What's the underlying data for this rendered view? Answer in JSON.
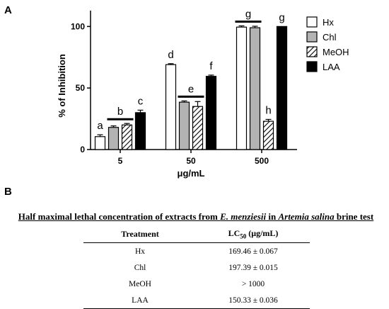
{
  "panels": {
    "a_label": "A",
    "b_label": "B"
  },
  "chart_data": {
    "type": "bar",
    "categories": [
      "5",
      "50",
      "500"
    ],
    "xlabel": "μg/mL",
    "ylabel": "% of Inhibition",
    "ylim": [
      0,
      110
    ],
    "yticks": [
      0,
      50,
      100
    ],
    "grid": false,
    "legend_position": "right",
    "series": [
      {
        "name": "Hx",
        "values": [
          10.5,
          69,
          99.5
        ],
        "errors": [
          1.5,
          0.8,
          1.0
        ],
        "fill": "white"
      },
      {
        "name": "Chl",
        "values": [
          18,
          38.5,
          99
        ],
        "errors": [
          1.2,
          1.0,
          1.2
        ],
        "fill": "gray"
      },
      {
        "name": "MeOH",
        "values": [
          20,
          35,
          23
        ],
        "errors": [
          1.2,
          4.0,
          1.5
        ],
        "fill": "hatch"
      },
      {
        "name": "LAA",
        "values": [
          30,
          59.5,
          100
        ],
        "errors": [
          2.0,
          1.0,
          0.0
        ],
        "fill": "black"
      }
    ],
    "significance_letters": [
      {
        "text": "a",
        "group": 0,
        "bars": [
          0
        ]
      },
      {
        "text": "b",
        "group": 0,
        "bars": [
          1,
          2
        ]
      },
      {
        "text": "c",
        "group": 0,
        "bars": [
          3
        ]
      },
      {
        "text": "d",
        "group": 1,
        "bars": [
          0
        ]
      },
      {
        "text": "e",
        "group": 1,
        "bars": [
          1,
          2
        ]
      },
      {
        "text": "f",
        "group": 1,
        "bars": [
          3
        ]
      },
      {
        "text": "g",
        "group": 2,
        "bars": [
          0,
          1
        ]
      },
      {
        "text": "h",
        "group": 2,
        "bars": [
          2
        ]
      },
      {
        "text": "g",
        "group": 2,
        "bars": [
          3
        ]
      }
    ]
  },
  "colors": {
    "gray_fill": "#b3b3b3",
    "black_fill": "#000000",
    "white_fill": "#ffffff",
    "line": "#000000"
  },
  "table": {
    "caption_prefix": "Half maximal lethal concentration of extracts from ",
    "caption_species": "E. menziesii",
    "caption_middle": " in ",
    "caption_organism": "Artemia salina",
    "caption_suffix": " brine test",
    "headers": [
      "Treatment",
      "LC50 (μg/mL)"
    ],
    "rows": [
      [
        "Hx",
        "169.46 ± 0.067"
      ],
      [
        "Chl",
        "197.39 ± 0.015"
      ],
      [
        "MeOH",
        "> 1000"
      ],
      [
        "LAA",
        "150.33 ± 0.036"
      ]
    ]
  }
}
